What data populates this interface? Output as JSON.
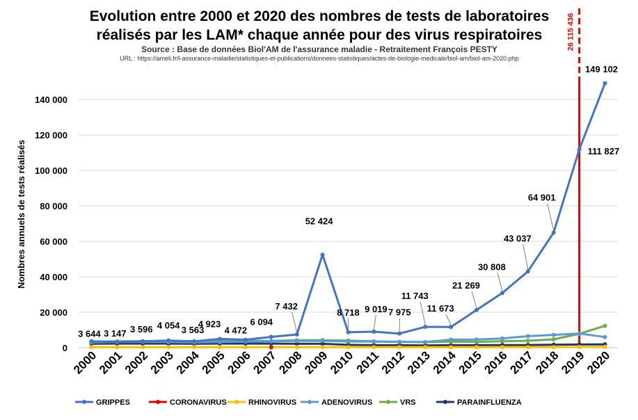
{
  "chart_data": {
    "type": "line",
    "title_line1": "Evolution entre 2000 et 2020 des nombres de tests de laboratoires",
    "title_line2": "réalisés par les LAM* chaque année pour des virus respiratoires",
    "subtitle": "Source : Base de données Biol'AM de l'assurance maladie - Retraitement François PESTY",
    "url": "URL : https://ameli.fr/l-assurance-maladie/statistiques-et-publications/donnees-statistiques/actes-de-biologie-medicale/biol-am/biol-am-2020.php",
    "ylabel": "Nombres annuels de tests réalisés",
    "ylim": [
      0,
      160000
    ],
    "yticks": [
      0,
      20000,
      40000,
      60000,
      80000,
      100000,
      120000,
      140000
    ],
    "ytick_labels": [
      "0",
      "20 000",
      "40 000",
      "60 000",
      "80 000",
      "100 000",
      "120 000",
      "140 000"
    ],
    "categories": [
      "2000",
      "2001",
      "2002",
      "2003",
      "2004",
      "2005",
      "2006",
      "2007",
      "2008",
      "2009",
      "2010",
      "2011",
      "2012",
      "2013",
      "2014",
      "2015",
      "2016",
      "2017",
      "2018",
      "2019",
      "2020"
    ],
    "grid": true,
    "legend_position": "bottom",
    "series": [
      {
        "name": "GRIPPES",
        "color": "#4472c4",
        "values": [
          3644,
          3147,
          3596,
          4054,
          3563,
          4923,
          4472,
          6094,
          7432,
          52424,
          8718,
          9019,
          7975,
          11743,
          11673,
          21269,
          30808,
          43037,
          64901,
          111827,
          149102
        ],
        "labels": [
          "3 644",
          "3 147",
          "3 596",
          "4 054",
          "3 563",
          "4 923",
          "4 472",
          "6 094",
          "7 432",
          "52 424",
          "8 718",
          "9 019",
          "7 975",
          "11 743",
          "11 673",
          "21 269",
          "30 808",
          "43 037",
          "64 901",
          "111 827",
          "149 102"
        ]
      },
      {
        "name": "CORONAVIRUS",
        "color": "#e00000",
        "values": [
          null,
          null,
          null,
          null,
          null,
          null,
          null,
          200,
          null,
          null,
          null,
          null,
          null,
          null,
          null,
          null,
          null,
          null,
          null,
          null,
          null
        ]
      },
      {
        "name": "RHINOVIRUS",
        "color": "#ffc000",
        "values": [
          300,
          300,
          300,
          300,
          300,
          300,
          300,
          300,
          300,
          300,
          300,
          300,
          300,
          300,
          300,
          300,
          300,
          300,
          300,
          400,
          500
        ]
      },
      {
        "name": "ADENOVIRUS",
        "color": "#5b9bd5",
        "values": [
          3000,
          3200,
          3300,
          3200,
          3000,
          3200,
          3500,
          3600,
          3800,
          3900,
          3500,
          3400,
          3300,
          3200,
          4500,
          4600,
          5200,
          6500,
          7200,
          8000,
          6000
        ]
      },
      {
        "name": "VRS",
        "color": "#70ad47",
        "values": [
          3500,
          3600,
          3700,
          3800,
          3700,
          3900,
          3800,
          3800,
          4200,
          4200,
          4000,
          3600,
          3300,
          3100,
          3400,
          3300,
          3600,
          3900,
          4700,
          7800,
          12300
        ]
      },
      {
        "name": "PARAINFLUENZA",
        "color": "#203864",
        "values": [
          2200,
          2300,
          2300,
          2300,
          2200,
          2300,
          2300,
          2300,
          2200,
          2200,
          1600,
          1400,
          1400,
          1300,
          1400,
          1400,
          1500,
          1500,
          1700,
          1800,
          1900
        ]
      }
    ],
    "annotation": {
      "category": "2019",
      "label": "26 115 436",
      "color": "#e00000"
    }
  }
}
